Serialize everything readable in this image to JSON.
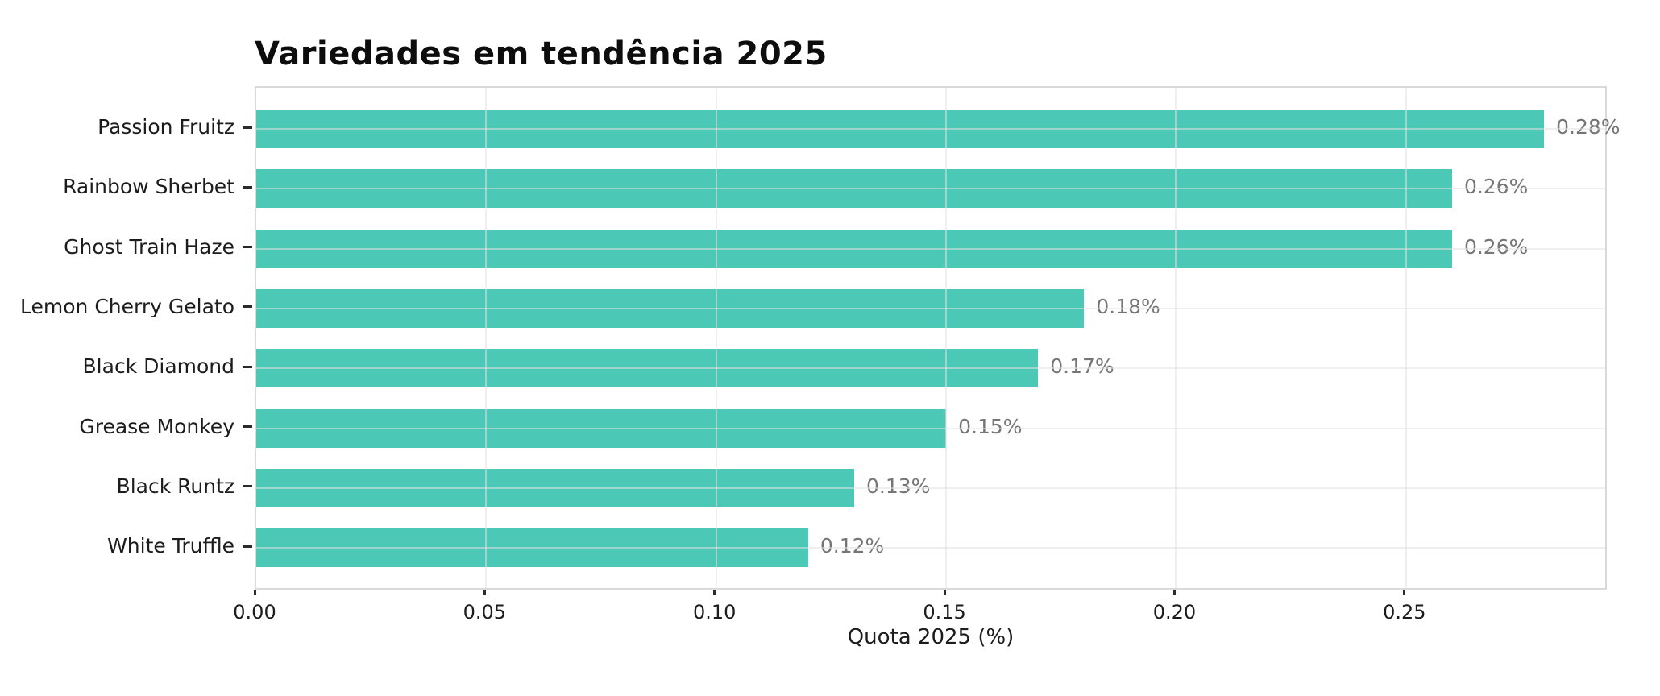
{
  "chart_data": {
    "type": "bar",
    "orientation": "horizontal",
    "title": "Variedades em tendência 2025",
    "xlabel": "Quota 2025 (%)",
    "categories": [
      "Passion Fruitz",
      "Rainbow Sherbet",
      "Ghost Train Haze",
      "Lemon Cherry Gelato",
      "Black Diamond",
      "Grease Monkey",
      "Black Runtz",
      "White Truffle"
    ],
    "values": [
      0.28,
      0.26,
      0.26,
      0.18,
      0.17,
      0.15,
      0.13,
      0.12
    ],
    "value_labels": [
      "0.28%",
      "0.26%",
      "0.26%",
      "0.18%",
      "0.17%",
      "0.15%",
      "0.13%",
      "0.12%"
    ],
    "xticks": [
      0.0,
      0.05,
      0.1,
      0.15,
      0.2,
      0.25
    ],
    "xtick_labels": [
      "0.00",
      "0.05",
      "0.10",
      "0.15",
      "0.20",
      "0.25"
    ],
    "xlim": [
      0,
      0.294
    ],
    "grid": true,
    "legend": false,
    "colors": {
      "bar": "#4cc8b6",
      "value_label": "#757575",
      "axis_text": "#1c1c1c",
      "title_text": "#0d0d0d",
      "plot_border": "#dadada"
    }
  }
}
